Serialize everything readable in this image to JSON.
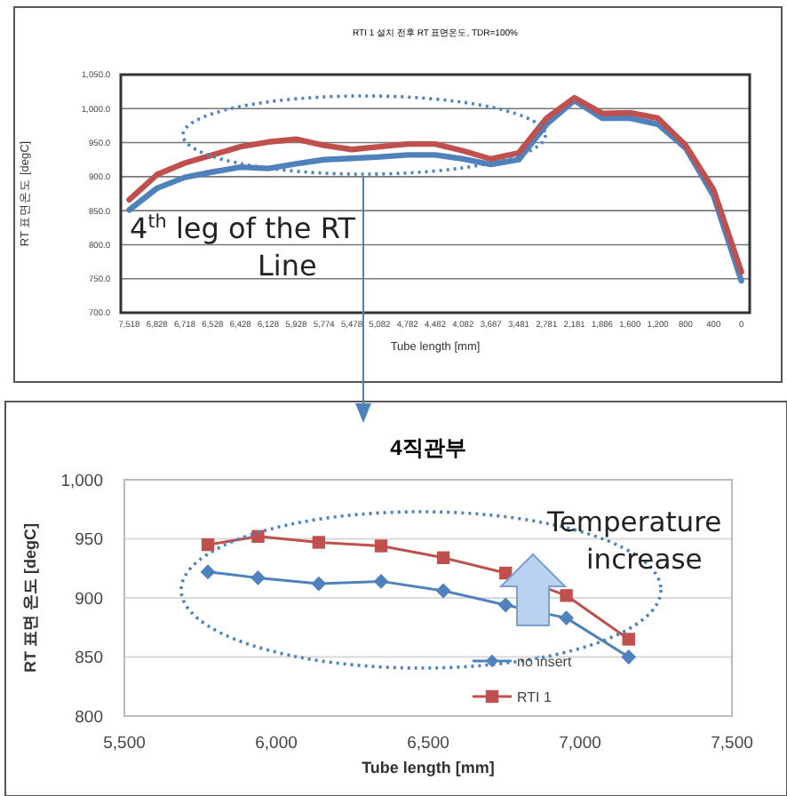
{
  "chart_data": [
    {
      "type": "line",
      "title": "RTI 1 설치 전후 RT 표면온도, TDR=100%",
      "xlabel": "Tube length [mm]",
      "ylabel": "RT 표면온도 [degC]",
      "categories": [
        "7,518",
        "6,828",
        "6,718",
        "6,528",
        "6,428",
        "6,128",
        "5,928",
        "5,774",
        "5,478",
        "5,082",
        "4,782",
        "4,482",
        "4,082",
        "3,687",
        "3,481",
        "2,781",
        "2,181",
        "1,886",
        "1,600",
        "1,200",
        "800",
        "400",
        "0"
      ],
      "series": [
        {
          "color": "#4f81bd",
          "values": [
            851,
            883,
            899,
            907,
            914,
            912,
            919,
            925,
            927,
            929,
            932,
            932,
            926,
            918,
            925,
            977,
            1012,
            986,
            986,
            977,
            942,
            872,
            747
          ]
        },
        {
          "color": "#c0504d",
          "values": [
            866,
            903,
            920,
            932,
            944,
            951,
            955,
            946,
            940,
            944,
            948,
            948,
            938,
            926,
            935,
            986,
            1016,
            993,
            994,
            986,
            946,
            881,
            760
          ]
        }
      ],
      "ylim": [
        700,
        1050
      ],
      "yticks": [
        {
          "value": 1050,
          "label": "1,050.0"
        },
        {
          "value": 1000,
          "label": "1,000.0"
        },
        {
          "value": 950,
          "label": "950.0"
        },
        {
          "value": 900,
          "label": "900.0"
        },
        {
          "value": 850,
          "label": "850.0"
        },
        {
          "value": 800,
          "label": "800.0"
        },
        {
          "value": 750,
          "label": "750.0"
        },
        {
          "value": 700,
          "label": "700.0"
        }
      ],
      "grid": "y",
      "legend": false,
      "annotations": [
        "4$^{th}$ leg of the RT Line"
      ]
    },
    {
      "type": "line",
      "title": "4직관부",
      "xlabel": "Tube length [mm]",
      "ylabel": "RT 표면 온도 [degC]",
      "series": [
        {
          "name": "no insert",
          "color": "#4f81bd",
          "marker": "diamond",
          "x": [
            5775,
            5940,
            6140,
            6345,
            6550,
            6755,
            6955,
            7160
          ],
          "values": [
            922,
            917,
            912,
            914,
            906,
            894,
            883,
            850
          ]
        },
        {
          "name": "RTI 1",
          "color": "#c0504d",
          "marker": "square",
          "x": [
            5775,
            5940,
            6140,
            6345,
            6550,
            6755,
            6955,
            7160
          ],
          "values": [
            945,
            952,
            947,
            944,
            934,
            921,
            902,
            865
          ]
        }
      ],
      "xlim": [
        5500,
        7500
      ],
      "xticks": [
        {
          "value": 5500,
          "label": "5,500"
        },
        {
          "value": 6000,
          "label": "6,000"
        },
        {
          "value": 6500,
          "label": "6,500"
        },
        {
          "value": 7000,
          "label": "7,000"
        },
        {
          "value": 7500,
          "label": "7,500"
        }
      ],
      "ylim": [
        800,
        1000
      ],
      "yticks": [
        800,
        850,
        900,
        950,
        {
          "value": 1000,
          "label": "1,000"
        }
      ],
      "grid": "y",
      "legend": "bottom right",
      "line_style": "solid",
      "annotations": [
        "Temperature increase"
      ]
    }
  ]
}
